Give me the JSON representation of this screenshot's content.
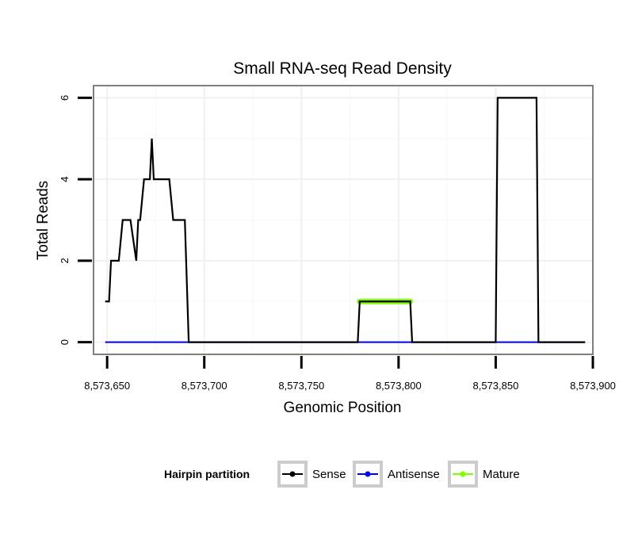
{
  "chart_data": {
    "type": "line",
    "title": "Small RNA-seq Read Density",
    "xlabel": "Genomic Position",
    "ylabel": "Total Reads",
    "xlim": [
      8573643,
      8573900
    ],
    "ylim": [
      -0.3,
      6.3
    ],
    "x_ticks": [
      8573650,
      8573700,
      8573750,
      8573800,
      8573850,
      8573900
    ],
    "x_tick_labels": [
      "8,573,650",
      "8,573,700",
      "8,573,750",
      "8,573,800",
      "8,573,850",
      "8,573,900"
    ],
    "y_ticks": [
      0,
      2,
      4,
      6
    ],
    "y_tick_labels": [
      "0",
      "2",
      "4",
      "6"
    ],
    "grid": true,
    "legend": {
      "title": "Hairpin partition",
      "position": "bottom",
      "entries": [
        "Sense",
        "Antisense",
        "Mature"
      ]
    },
    "series": [
      {
        "name": "Sense",
        "color": "#000000",
        "x": [
          8573649,
          8573651,
          8573652,
          8573656,
          8573658,
          8573662,
          8573665,
          8573666,
          8573667,
          8573669,
          8573672,
          8573673,
          8573674,
          8573682,
          8573684,
          8573690,
          8573692,
          8573779,
          8573780,
          8573806,
          8573807,
          8573850,
          8573851,
          8573871,
          8573872,
          8573896
        ],
        "y": [
          1,
          1,
          2,
          2,
          3,
          3,
          2,
          3,
          3,
          4,
          4,
          5,
          4,
          4,
          3,
          3,
          0,
          0,
          1,
          1,
          0,
          0,
          6,
          6,
          0,
          0
        ]
      },
      {
        "name": "Antisense",
        "color": "#0000ff",
        "x": [
          8573649,
          8573896
        ],
        "y": [
          0,
          0
        ]
      },
      {
        "name": "Mature",
        "color": "#7fff00",
        "x": [
          8573780,
          8573806
        ],
        "y": [
          1,
          1
        ]
      }
    ]
  }
}
